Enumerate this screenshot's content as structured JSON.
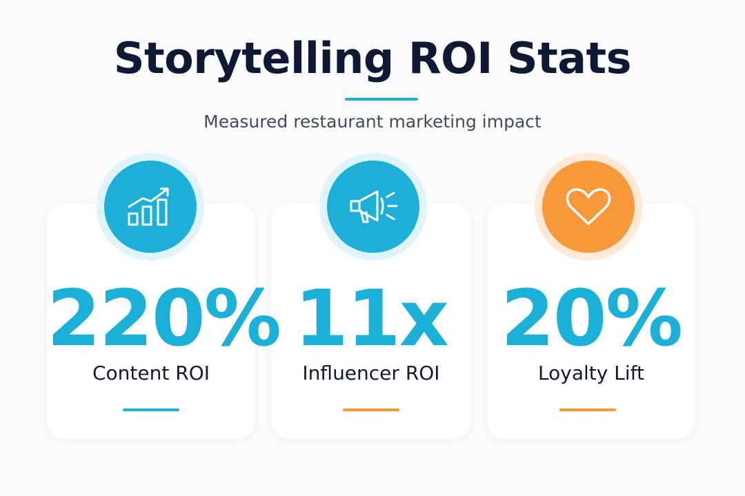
{
  "header": {
    "title": "Storytelling ROI Stats",
    "subtitle": "Measured restaurant marketing impact"
  },
  "cards": [
    {
      "value": "220%",
      "label": "Content ROI"
    },
    {
      "value": "11x",
      "label": "Influencer ROI"
    },
    {
      "value": "20%",
      "label": "Loyalty Lift"
    }
  ]
}
